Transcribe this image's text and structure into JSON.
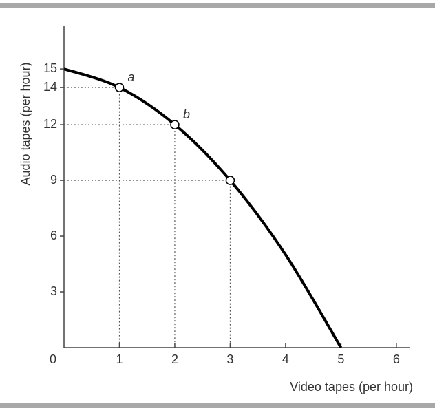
{
  "chart_data": {
    "type": "line",
    "x_label": "Video tapes (per hour)",
    "y_label": "Audio tapes (per hour)",
    "series": [
      {
        "x": [
          0,
          1,
          2,
          3,
          4,
          5
        ],
        "values": [
          15,
          14,
          12,
          9,
          5,
          0
        ],
        "color": "#000000"
      }
    ],
    "points": {
      "x": [
        1,
        2,
        3
      ],
      "y": [
        14,
        12,
        9
      ],
      "labels": [
        "a",
        "b",
        null
      ]
    },
    "xlim": [
      0,
      6.25
    ],
    "ylim": [
      0,
      17.3
    ],
    "xticks": [
      0,
      1,
      2,
      3,
      4,
      5,
      6
    ],
    "yticks": [
      3,
      6,
      9,
      12,
      14,
      15
    ]
  }
}
